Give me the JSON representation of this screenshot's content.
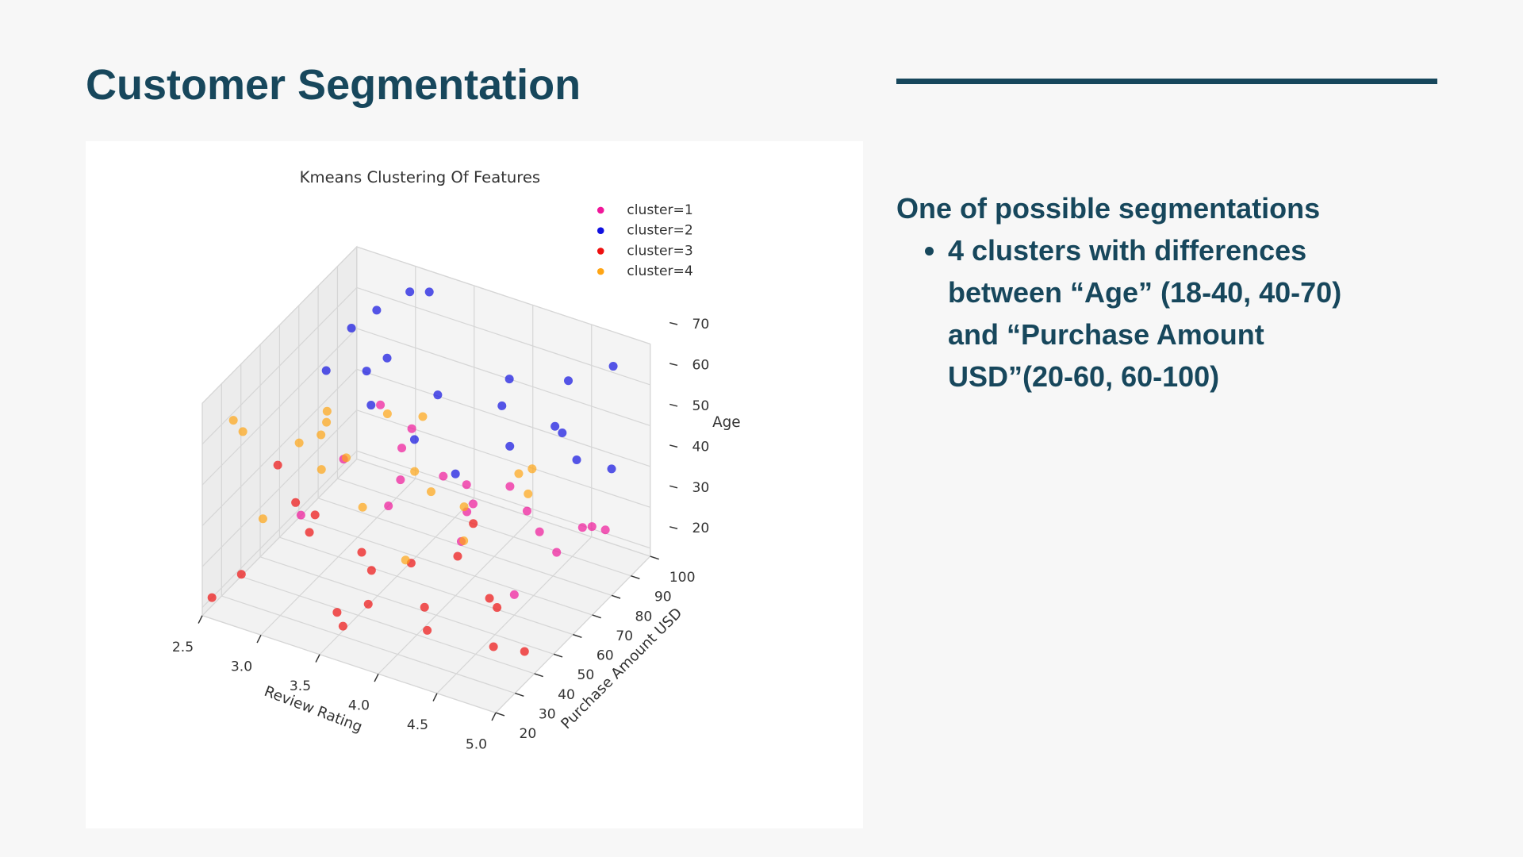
{
  "title": "Customer Segmentation",
  "body": {
    "heading": "One of possible segmentations",
    "bullets": [
      "4 clusters with differences between “Age” (18-40, 40-70) and “Purchase Amount USD”(20-60, 60-100)"
    ]
  },
  "chart_data": {
    "type": "scatter3d",
    "title": "Kmeans Clustering Of Features",
    "x_label": "Review Rating",
    "y_label": "Purchase Amount USD",
    "z_label": "Age",
    "xlim": [
      2.5,
      5.0
    ],
    "ylim": [
      20,
      100
    ],
    "zlim": [
      18,
      70
    ],
    "xticks": [
      2.5,
      {
        "value": 3,
        "label": "3.0"
      },
      3.5,
      {
        "value": 4,
        "label": "4.0"
      },
      4.5,
      {
        "value": 5,
        "label": "5.0"
      }
    ],
    "yticks": [
      20,
      30,
      40,
      50,
      60,
      70,
      80,
      90,
      100
    ],
    "zticks": [
      20,
      30,
      40,
      50,
      60,
      70
    ],
    "grid": true,
    "legend": "upper right",
    "series": [
      {
        "name": "cluster=1",
        "color": "#f0179a",
        "x": [
          2.6,
          3.1,
          3.8,
          4.4,
          4.9,
          2.9,
          3.5,
          4.1,
          4.7,
          3.3,
          2.7,
          4.0,
          4.6,
          3.6,
          4.2,
          3.0,
          4.8,
          3.9,
          2.8,
          4.5
        ],
        "y": [
          65,
          92,
          78,
          88,
          71,
          99,
          84,
          63,
          95,
          74,
          81,
          97,
          67,
          90,
          76,
          86,
          82,
          69,
          94,
          60
        ],
        "z": [
          22,
          35,
          28,
          19,
          38,
          25,
          31,
          40,
          24,
          33,
          29,
          21,
          36,
          27,
          39,
          18,
          32,
          26,
          37,
          23
        ]
      },
      {
        "name": "cluster=2",
        "color": "#1010e0",
        "x": [
          2.7,
          3.2,
          3.9,
          4.5,
          5.0,
          2.6,
          3.4,
          4.0,
          4.8,
          3.0,
          3.7,
          4.3,
          2.9,
          3.6,
          4.6,
          3.1,
          4.1,
          4.9,
          2.8,
          3.8
        ],
        "y": [
          72,
          95,
          66,
          88,
          80,
          99,
          61,
          84,
          93,
          77,
          69,
          97,
          86,
          63,
          75,
          91,
          82,
          68,
          79,
          100
        ],
        "z": [
          55,
          68,
          44,
          62,
          49,
          41,
          70,
          53,
          66,
          47,
          60,
          43,
          65,
          51,
          58,
          69,
          45,
          56,
          63,
          50
        ]
      },
      {
        "name": "cluster=3",
        "color": "#ee1010",
        "x": [
          2.5,
          3.0,
          3.7,
          4.2,
          4.9,
          2.8,
          3.3,
          4.0,
          4.6,
          3.5,
          2.6,
          4.4,
          3.9,
          3.1,
          4.8,
          2.9,
          3.6,
          4.1,
          4.7,
          3.2
        ],
        "y": [
          25,
          48,
          33,
          57,
          41,
          22,
          59,
          37,
          45,
          29,
          53,
          21,
          50,
          39,
          31,
          44,
          26,
          55,
          35,
          60
        ],
        "z": [
          20,
          34,
          26,
          39,
          22,
          30,
          18,
          37,
          28,
          24,
          40,
          32,
          19,
          35,
          27,
          38,
          23,
          31,
          36,
          21
        ]
      },
      {
        "name": "cluster=4",
        "color": "#ffa514",
        "x": [
          2.6,
          3.2,
          3.8,
          4.3,
          4.9,
          2.7,
          3.4,
          4.0,
          4.7,
          3.0,
          3.6,
          4.5,
          2.9,
          3.3,
          4.1,
          4.8,
          2.5,
          3.7,
          4.4,
          3.1
        ],
        "y": [
          30,
          52,
          24,
          46,
          38,
          58,
          27,
          43,
          55,
          21,
          49,
          34,
          60,
          36,
          28,
          51,
          41,
          57,
          23,
          45
        ],
        "z": [
          62,
          48,
          55,
          41,
          67,
          44,
          59,
          70,
          52,
          46,
          64,
          57,
          50,
          68,
          43,
          61,
          53,
          47,
          65,
          56
        ]
      }
    ]
  }
}
